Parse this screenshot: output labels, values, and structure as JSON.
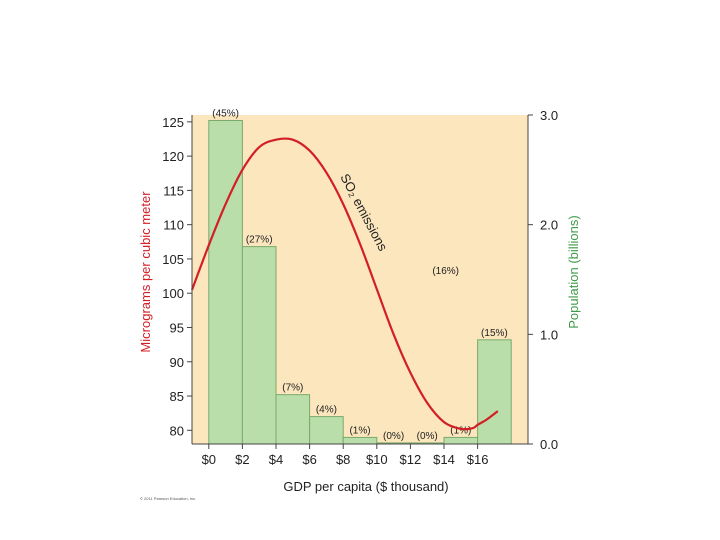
{
  "chart_data": {
    "type": "bar",
    "title": "",
    "xlabel": "GDP per capita ($ thousand)",
    "ylabel_left": "Micrograms per cubic meter",
    "ylabel_right": "Population (billions)",
    "x_ticks": [
      "$0",
      "$2",
      "$4",
      "$6",
      "$8",
      "$10",
      "$12",
      "$14",
      "$16"
    ],
    "left_ticks": [
      "125",
      "120",
      "115",
      "110",
      "105",
      "100",
      "95",
      "90",
      "85",
      "80"
    ],
    "left_tick_values": [
      125,
      120,
      115,
      110,
      105,
      100,
      95,
      90,
      85,
      80
    ],
    "right_ticks": [
      "3.0",
      "2.0",
      "1.0",
      "0.0"
    ],
    "right_tick_values": [
      3.0,
      2.0,
      1.0,
      0.0
    ],
    "ylim_left": [
      78,
      126
    ],
    "ylim_right": [
      0,
      3.0
    ],
    "xlim": [
      -1,
      19
    ],
    "grid": false,
    "bars": {
      "name": "Population",
      "x_start": [
        0,
        2,
        4,
        6,
        8,
        10,
        12,
        14,
        16
      ],
      "values": [
        2.95,
        1.8,
        0.45,
        0.25,
        0.06,
        0.01,
        0.01,
        0.06,
        0.95
      ],
      "labels": [
        "(45%)",
        "(27%)",
        "(7%)",
        "(4%)",
        "(1%)",
        "(0%)",
        "(0%)",
        "(1%)",
        "(15%)"
      ]
    },
    "floating_labels": [
      {
        "text": "(16%)",
        "x": 14.1,
        "y": 1.55
      }
    ],
    "series": [
      {
        "name": "SO₂ emissions",
        "axis": "left",
        "x": [
          -1,
          0,
          1,
          2,
          3,
          4,
          5,
          6,
          7,
          8,
          9,
          10,
          11,
          12,
          13,
          14,
          15,
          15.7,
          16,
          16.5,
          17.2
        ],
        "y": [
          100.5,
          107,
          113,
          118,
          121.3,
          122.4,
          122.4,
          120.8,
          117.6,
          113,
          107.2,
          100.6,
          94,
          88.4,
          84,
          81.2,
          80.2,
          80.3,
          80.8,
          81.5,
          82.8
        ]
      }
    ],
    "series_annotation": {
      "text": "SO₂ emissions",
      "x": 9.0,
      "y": 111.5
    },
    "colors": {
      "plot_background": "#fbe6bd",
      "bar_fill": "#b9dea9",
      "bar_stroke": "#7aaa6c",
      "curve": "#d21f26",
      "left_axis_title": "#d21f26",
      "right_axis_title": "#3f9a49"
    }
  },
  "footer": {
    "credit": "© 2011 Pearson Education, Inc."
  }
}
